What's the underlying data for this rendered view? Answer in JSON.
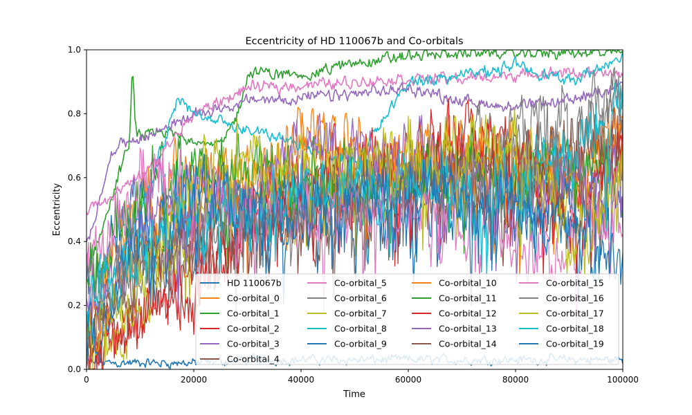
{
  "chart_data": {
    "type": "line",
    "title": "Eccentricity of HD 110067b and Co-orbitals",
    "xlabel": "Time",
    "ylabel": "Eccentricity",
    "xlim": [
      0,
      100000
    ],
    "ylim": [
      0,
      1.0
    ],
    "xticks": [
      0,
      20000,
      40000,
      60000,
      80000,
      100000
    ],
    "xtick_labels": [
      "0",
      "20000",
      "40000",
      "60000",
      "80000",
      "100000"
    ],
    "yticks": [
      0,
      0.2,
      0.4,
      0.6,
      0.8,
      1.0
    ],
    "ytick_labels": [
      "0.0",
      "0.2",
      "0.4",
      "0.6",
      "0.8",
      "1.0"
    ],
    "grid": false,
    "legend_position": "lower-right",
    "legend_columns": 4,
    "series": [
      {
        "name": "HD 110067b",
        "color": "#1f77b4",
        "kind": "low",
        "x": [
          0,
          10000,
          20000,
          30000,
          40000,
          50000,
          60000,
          70000,
          80000,
          90000,
          100000
        ],
        "y": [
          0.02,
          0.02,
          0.02,
          0.03,
          0.03,
          0.03,
          0.03,
          0.03,
          0.03,
          0.03,
          0.03
        ]
      },
      {
        "name": "Co-orbital_0",
        "color": "#ff7f0e",
        "kind": "chaotic",
        "x": [
          0,
          10000,
          20000,
          30000,
          40000,
          50000,
          60000,
          70000,
          80000,
          90000,
          100000
        ],
        "y": [
          0.2,
          0.55,
          0.6,
          0.55,
          0.7,
          0.62,
          0.65,
          0.6,
          0.65,
          0.6,
          0.8
        ]
      },
      {
        "name": "Co-orbital_1",
        "color": "#2ca02c",
        "kind": "rising",
        "x": [
          0,
          8000,
          8500,
          9000,
          15000,
          25000,
          28000,
          30000,
          40000,
          50000,
          60000,
          70000,
          80000,
          90000,
          100000
        ],
        "y": [
          0.3,
          0.72,
          1.0,
          0.73,
          0.74,
          0.7,
          0.8,
          0.93,
          0.92,
          0.96,
          0.98,
          0.99,
          0.99,
          0.99,
          0.99
        ]
      },
      {
        "name": "Co-orbital_2",
        "color": "#d62728",
        "kind": "chaotic",
        "x": [
          0,
          10000,
          20000,
          30000,
          40000,
          50000,
          60000,
          70000,
          80000,
          90000,
          100000
        ],
        "y": [
          0.05,
          0.2,
          0.3,
          0.45,
          0.55,
          0.6,
          0.65,
          0.7,
          0.65,
          0.55,
          0.7
        ]
      },
      {
        "name": "Co-orbital_3",
        "color": "#9467bd",
        "kind": "rising",
        "x": [
          0,
          5000,
          10000,
          20000,
          30000,
          40000,
          50000,
          60000,
          70000,
          80000,
          90000,
          100000
        ],
        "y": [
          0.4,
          0.7,
          0.72,
          0.8,
          0.84,
          0.85,
          0.86,
          0.88,
          0.84,
          0.82,
          0.84,
          0.9
        ]
      },
      {
        "name": "Co-orbital_4",
        "color": "#8c564b",
        "kind": "chaotic",
        "x": [
          0,
          10000,
          20000,
          30000,
          40000,
          50000,
          60000,
          70000,
          80000,
          90000,
          100000
        ],
        "y": [
          0.1,
          0.35,
          0.45,
          0.5,
          0.45,
          0.5,
          0.55,
          0.5,
          0.55,
          0.6,
          0.7
        ]
      },
      {
        "name": "Co-orbital_5",
        "color": "#e377c2",
        "kind": "rising",
        "x": [
          0,
          10000,
          20000,
          25000,
          30000,
          40000,
          50000,
          60000,
          70000,
          80000,
          90000,
          100000
        ],
        "y": [
          0.5,
          0.6,
          0.8,
          0.84,
          0.88,
          0.89,
          0.9,
          0.91,
          0.91,
          0.92,
          0.93,
          0.92
        ]
      },
      {
        "name": "Co-orbital_6",
        "color": "#7f7f7f",
        "kind": "chaotic",
        "x": [
          0,
          10000,
          20000,
          30000,
          40000,
          50000,
          60000,
          70000,
          80000,
          90000,
          100000
        ],
        "y": [
          0.1,
          0.3,
          0.45,
          0.5,
          0.55,
          0.6,
          0.65,
          0.7,
          0.75,
          0.8,
          0.85
        ]
      },
      {
        "name": "Co-orbital_7",
        "color": "#bcbd22",
        "kind": "chaotic",
        "x": [
          0,
          10000,
          20000,
          30000,
          40000,
          50000,
          60000,
          70000,
          80000,
          90000,
          100000
        ],
        "y": [
          0.05,
          0.2,
          0.5,
          0.62,
          0.6,
          0.6,
          0.65,
          0.7,
          0.65,
          0.5,
          0.6
        ]
      },
      {
        "name": "Co-orbital_8",
        "color": "#17becf",
        "kind": "rising",
        "x": [
          0,
          10000,
          17000,
          20000,
          30000,
          40000,
          50000,
          60000,
          70000,
          80000,
          90000,
          100000
        ],
        "y": [
          0.1,
          0.5,
          0.85,
          0.8,
          0.75,
          0.7,
          0.65,
          0.9,
          0.92,
          0.95,
          0.9,
          0.98
        ]
      },
      {
        "name": "Co-orbital_9",
        "color": "#1f77b4",
        "kind": "chaotic",
        "x": [
          0,
          10000,
          20000,
          30000,
          40000,
          50000,
          60000,
          70000,
          80000,
          90000,
          100000
        ],
        "y": [
          0.3,
          0.55,
          0.6,
          0.55,
          0.5,
          0.48,
          0.5,
          0.55,
          0.5,
          0.55,
          0.5
        ]
      },
      {
        "name": "Co-orbital_10",
        "color": "#ff7f0e",
        "kind": "chaotic",
        "x": [
          0,
          10000,
          20000,
          30000,
          40000,
          50000,
          60000,
          70000,
          80000,
          90000,
          100000
        ],
        "y": [
          0.1,
          0.4,
          0.55,
          0.6,
          0.75,
          0.7,
          0.65,
          0.7,
          0.65,
          0.6,
          0.75
        ]
      },
      {
        "name": "Co-orbital_11",
        "color": "#2ca02c",
        "kind": "chaotic",
        "x": [
          0,
          10000,
          20000,
          30000,
          40000,
          50000,
          60000,
          70000,
          80000,
          90000,
          100000
        ],
        "y": [
          0.3,
          0.6,
          0.65,
          0.6,
          0.65,
          0.6,
          0.62,
          0.65,
          0.6,
          0.62,
          0.6
        ]
      },
      {
        "name": "Co-orbital_12",
        "color": "#d62728",
        "kind": "chaotic",
        "x": [
          0,
          10000,
          20000,
          30000,
          40000,
          50000,
          60000,
          70000,
          80000,
          90000,
          100000
        ],
        "y": [
          0.05,
          0.15,
          0.3,
          0.45,
          0.6,
          0.65,
          0.7,
          0.72,
          0.7,
          0.45,
          0.75
        ]
      },
      {
        "name": "Co-orbital_13",
        "color": "#9467bd",
        "kind": "chaotic",
        "x": [
          0,
          10000,
          20000,
          30000,
          40000,
          50000,
          60000,
          70000,
          80000,
          90000,
          100000
        ],
        "y": [
          0.2,
          0.45,
          0.5,
          0.55,
          0.7,
          0.72,
          0.7,
          0.6,
          0.55,
          0.6,
          0.65
        ]
      },
      {
        "name": "Co-orbital_14",
        "color": "#8c564b",
        "kind": "chaotic",
        "x": [
          0,
          10000,
          20000,
          30000,
          40000,
          50000,
          60000,
          70000,
          80000,
          90000,
          100000
        ],
        "y": [
          0.1,
          0.35,
          0.4,
          0.45,
          0.5,
          0.55,
          0.6,
          0.62,
          0.65,
          0.7,
          0.72
        ]
      },
      {
        "name": "Co-orbital_15",
        "color": "#e377c2",
        "kind": "chaotic",
        "x": [
          0,
          10000,
          20000,
          30000,
          40000,
          50000,
          60000,
          70000,
          80000,
          90000,
          100000
        ],
        "y": [
          0.3,
          0.6,
          0.6,
          0.5,
          0.45,
          0.5,
          0.5,
          0.45,
          0.4,
          0.4,
          0.5
        ]
      },
      {
        "name": "Co-orbital_16",
        "color": "#7f7f7f",
        "kind": "chaotic",
        "x": [
          0,
          10000,
          20000,
          30000,
          40000,
          50000,
          60000,
          70000,
          80000,
          90000,
          100000
        ],
        "y": [
          0.2,
          0.4,
          0.45,
          0.5,
          0.5,
          0.55,
          0.6,
          0.6,
          0.65,
          0.7,
          0.85
        ]
      },
      {
        "name": "Co-orbital_17",
        "color": "#bcbd22",
        "kind": "chaotic",
        "x": [
          0,
          10000,
          20000,
          30000,
          40000,
          50000,
          60000,
          70000,
          80000,
          90000,
          100000
        ],
        "y": [
          0.05,
          0.3,
          0.6,
          0.7,
          0.65,
          0.65,
          0.7,
          0.7,
          0.72,
          0.4,
          0.65
        ]
      },
      {
        "name": "Co-orbital_18",
        "color": "#17becf",
        "kind": "chaotic",
        "x": [
          0,
          10000,
          20000,
          30000,
          40000,
          50000,
          60000,
          70000,
          80000,
          90000,
          100000
        ],
        "y": [
          0.2,
          0.4,
          0.5,
          0.5,
          0.55,
          0.55,
          0.6,
          0.55,
          0.6,
          0.65,
          0.85
        ]
      },
      {
        "name": "Co-orbital_19",
        "color": "#1f77b4",
        "kind": "chaotic",
        "x": [
          0,
          10000,
          20000,
          30000,
          40000,
          50000,
          60000,
          70000,
          80000,
          90000,
          100000
        ],
        "y": [
          0.05,
          0.45,
          0.55,
          0.5,
          0.5,
          0.55,
          0.6,
          0.55,
          0.5,
          0.45,
          0.3
        ]
      }
    ]
  }
}
